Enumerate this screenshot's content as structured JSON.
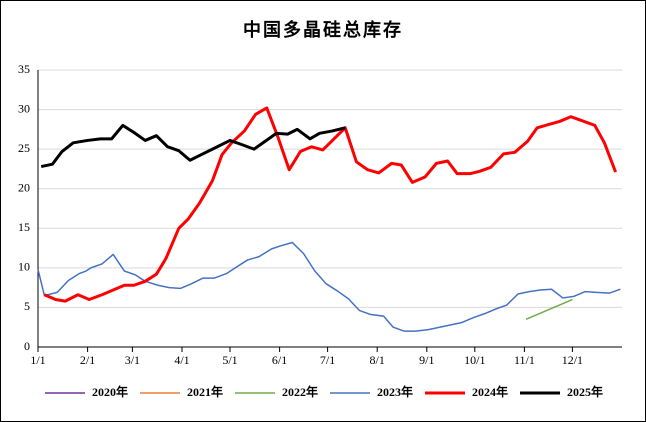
{
  "chart_data": {
    "type": "line",
    "title": "中国多晶硅总库存",
    "xlim": [
      0,
      365
    ],
    "ylim": [
      0,
      35
    ],
    "xticks": [
      {
        "value": 0,
        "label": "1/1"
      },
      {
        "value": 31,
        "label": "2/1"
      },
      {
        "value": 59,
        "label": "3/1"
      },
      {
        "value": 90,
        "label": "4/1"
      },
      {
        "value": 120,
        "label": "5/1"
      },
      {
        "value": 151,
        "label": "6/1"
      },
      {
        "value": 181,
        "label": "7/1"
      },
      {
        "value": 212,
        "label": "8/1"
      },
      {
        "value": 243,
        "label": "9/1"
      },
      {
        "value": 273,
        "label": "10/1"
      },
      {
        "value": 304,
        "label": "11/1"
      },
      {
        "value": 334,
        "label": "12/1"
      }
    ],
    "yticks": [
      0,
      5,
      10,
      15,
      20,
      25,
      30,
      35
    ],
    "grid": true,
    "series": [
      {
        "name": "2020年",
        "color": "#7030a0",
        "linewidth": 1.5,
        "x": [],
        "values": []
      },
      {
        "name": "2021年",
        "color": "#ed7d31",
        "linewidth": 1.5,
        "x": [],
        "values": []
      },
      {
        "name": "2022年",
        "color": "#70ad47",
        "linewidth": 1.5,
        "x": [
          305,
          334
        ],
        "values": [
          3.5,
          6.0
        ]
      },
      {
        "name": "2023年",
        "color": "#4472c4",
        "linewidth": 1.5,
        "x": [
          0,
          4,
          12,
          19,
          26,
          30,
          33,
          40,
          47,
          54,
          61,
          67,
          75,
          82,
          89,
          96,
          103,
          110,
          118,
          124,
          131,
          138,
          146,
          152,
          159,
          166,
          173,
          180,
          187,
          194,
          201,
          208,
          216,
          222,
          229,
          236,
          244,
          251,
          258,
          265,
          272,
          279,
          286,
          293,
          300,
          307,
          314,
          321,
          328,
          335,
          342,
          349,
          357,
          364
        ],
        "values": [
          9.8,
          6.5,
          6.9,
          8.4,
          9.3,
          9.6,
          10.0,
          10.5,
          11.7,
          9.6,
          9.1,
          8.3,
          7.8,
          7.5,
          7.4,
          8.0,
          8.7,
          8.7,
          9.3,
          10.1,
          11.0,
          11.4,
          12.4,
          12.8,
          13.2,
          11.8,
          9.6,
          8.0,
          7.1,
          6.1,
          4.6,
          4.1,
          3.9,
          2.5,
          2.0,
          2.0,
          2.2,
          2.5,
          2.8,
          3.1,
          3.7,
          4.2,
          4.8,
          5.3,
          6.7,
          7.0,
          7.2,
          7.3,
          6.2,
          6.4,
          7.0,
          6.9,
          6.8,
          7.3
        ]
      },
      {
        "name": "2024年",
        "color": "#ff0000",
        "linewidth": 3,
        "x": [
          4,
          11,
          17,
          25,
          32,
          40,
          47,
          54,
          60,
          67,
          74,
          80,
          88,
          94,
          101,
          109,
          115,
          121,
          129,
          136,
          143,
          150,
          157,
          164,
          171,
          178,
          192,
          199,
          206,
          213,
          221,
          227,
          234,
          242,
          249,
          256,
          262,
          270,
          276,
          283,
          291,
          298,
          306,
          312,
          319,
          326,
          333,
          340,
          348,
          354,
          361
        ],
        "values": [
          6.6,
          6.0,
          5.8,
          6.6,
          6.0,
          6.6,
          7.2,
          7.8,
          7.8,
          8.3,
          9.2,
          11.2,
          15.0,
          16.2,
          18.2,
          21.0,
          24.3,
          25.8,
          27.3,
          29.4,
          30.2,
          26.5,
          22.4,
          24.7,
          25.3,
          24.9,
          27.7,
          23.4,
          22.4,
          22.0,
          23.2,
          23.0,
          20.8,
          21.5,
          23.2,
          23.5,
          21.9,
          21.9,
          22.2,
          22.7,
          24.4,
          24.6,
          26.0,
          27.7,
          28.1,
          28.5,
          29.1,
          28.6,
          28.0,
          25.8,
          22.1
        ]
      },
      {
        "name": "2025年",
        "color": "#000000",
        "linewidth": 3,
        "x": [
          2,
          9,
          15,
          22,
          31,
          39,
          46,
          53,
          60,
          67,
          74,
          81,
          88,
          95,
          102,
          110,
          120,
          127,
          135,
          142,
          149,
          156,
          162,
          170,
          176,
          184,
          192
        ],
        "values": [
          22.8,
          23.1,
          24.7,
          25.8,
          26.1,
          26.3,
          26.3,
          28.0,
          27.1,
          26.1,
          26.7,
          25.3,
          24.8,
          23.6,
          24.3,
          25.1,
          26.1,
          25.6,
          25.0,
          26.0,
          27.0,
          26.9,
          27.5,
          26.3,
          27.0,
          27.3,
          27.7
        ]
      }
    ]
  }
}
